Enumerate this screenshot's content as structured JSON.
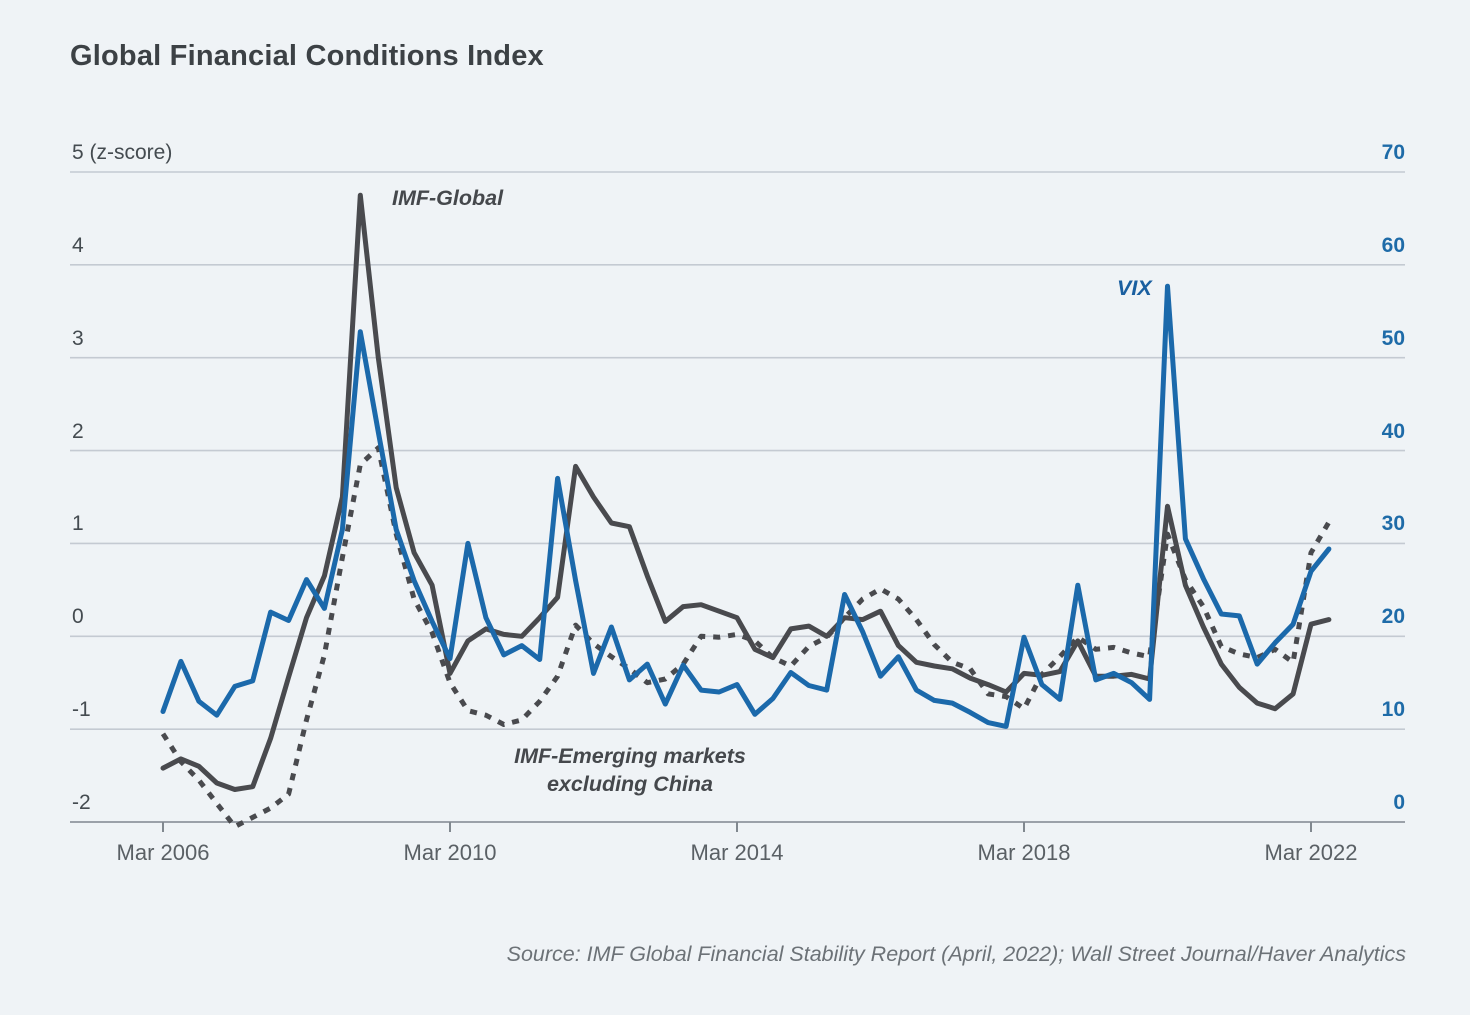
{
  "title": "Global Financial Conditions Index",
  "source": "Source: IMF Global Financial Stability Report (April, 2022); Wall Street Journal/Haver Analytics",
  "annotations": {
    "imf_global": "IMF-Global",
    "vix": "VIX",
    "em_line1": "IMF-Emerging markets",
    "em_line2": "excluding China"
  },
  "colors": {
    "background": "#eff3f6",
    "grid": "#c4cad2",
    "axis_line": "#9ba1a9",
    "tick_mark": "#81888f",
    "imf_lines": "#494a4e",
    "vix_line": "#1b69ab",
    "left_tick_text": "#444b50",
    "right_tick_text": "#1e6ba8",
    "x_tick_text": "#5a6065",
    "title_text": "#3c4145",
    "source_text": "#6c7277"
  },
  "axes": {
    "left": {
      "ticks": [
        {
          "value": 5,
          "label": "5 (z-score)"
        },
        {
          "value": 4,
          "label": "4"
        },
        {
          "value": 3,
          "label": "3"
        },
        {
          "value": 2,
          "label": "2"
        },
        {
          "value": 1,
          "label": "1"
        },
        {
          "value": 0,
          "label": "0"
        },
        {
          "value": -1,
          "label": "-1"
        },
        {
          "value": -2,
          "label": "-2"
        }
      ]
    },
    "right": {
      "ticks": [
        {
          "value": 70,
          "label": "70"
        },
        {
          "value": 60,
          "label": "60"
        },
        {
          "value": 50,
          "label": "50"
        },
        {
          "value": 40,
          "label": "40"
        },
        {
          "value": 30,
          "label": "30"
        },
        {
          "value": 20,
          "label": "20"
        },
        {
          "value": 10,
          "label": "10"
        },
        {
          "value": 0,
          "label": "0"
        }
      ]
    },
    "x": {
      "ticks": [
        {
          "label": "Mar 2006",
          "quarter_index": 0
        },
        {
          "label": "Mar 2010",
          "quarter_index": 16
        },
        {
          "label": "Mar 2014",
          "quarter_index": 32
        },
        {
          "label": "Mar 2018",
          "quarter_index": 48
        },
        {
          "label": "Mar 2022",
          "quarter_index": 64
        }
      ]
    }
  },
  "chart_data": {
    "type": "line",
    "title": "Global Financial Conditions Index",
    "grid": "horizontal",
    "legend_position": "inline-annotations",
    "left_axis": {
      "label": "(z-score)",
      "range": [
        -2,
        5
      ],
      "ticks": [
        5,
        4,
        3,
        2,
        1,
        0,
        -1,
        -2
      ]
    },
    "right_axis": {
      "label": "VIX",
      "range": [
        0,
        70
      ],
      "ticks": [
        70,
        60,
        50,
        40,
        30,
        20,
        10,
        0
      ]
    },
    "x_tick_labels": [
      "Mar 2006",
      "Mar 2010",
      "Mar 2014",
      "Mar 2018",
      "Mar 2022"
    ],
    "x_labels": [
      "Mar 2006",
      "Jun 2006",
      "Sep 2006",
      "Dec 2006",
      "Mar 2007",
      "Jun 2007",
      "Sep 2007",
      "Dec 2007",
      "Mar 2008",
      "Jun 2008",
      "Sep 2008",
      "Dec 2008",
      "Mar 2009",
      "Jun 2009",
      "Sep 2009",
      "Dec 2009",
      "Mar 2010",
      "Jun 2010",
      "Sep 2010",
      "Dec 2010",
      "Mar 2011",
      "Jun 2011",
      "Sep 2011",
      "Dec 2011",
      "Mar 2012",
      "Jun 2012",
      "Sep 2012",
      "Dec 2012",
      "Mar 2013",
      "Jun 2013",
      "Sep 2013",
      "Dec 2013",
      "Mar 2014",
      "Jun 2014",
      "Sep 2014",
      "Dec 2014",
      "Mar 2015",
      "Jun 2015",
      "Sep 2015",
      "Dec 2015",
      "Mar 2016",
      "Jun 2016",
      "Sep 2016",
      "Dec 2016",
      "Mar 2017",
      "Jun 2017",
      "Sep 2017",
      "Dec 2017",
      "Mar 2018",
      "Jun 2018",
      "Sep 2018",
      "Dec 2018",
      "Mar 2019",
      "Jun 2019",
      "Sep 2019",
      "Dec 2019",
      "Mar 2020",
      "Jun 2020",
      "Sep 2020",
      "Dec 2020",
      "Mar 2021",
      "Jun 2021",
      "Sep 2021",
      "Dec 2021",
      "Mar 2022",
      "Jun 2022"
    ],
    "series": [
      {
        "name": "IMF-Global",
        "axis": "left",
        "style": "solid",
        "color": "#494a4e",
        "values": [
          -1.42,
          -1.32,
          -1.4,
          -1.58,
          -1.65,
          -1.62,
          -1.1,
          -0.44,
          0.2,
          0.65,
          1.5,
          4.75,
          3.0,
          1.6,
          0.9,
          0.55,
          -0.4,
          -0.05,
          0.08,
          0.02,
          0.0,
          0.2,
          0.42,
          1.83,
          1.5,
          1.22,
          1.18,
          0.65,
          0.16,
          0.32,
          0.34,
          0.27,
          0.2,
          -0.14,
          -0.23,
          0.08,
          0.11,
          0.0,
          0.2,
          0.18,
          0.27,
          -0.1,
          -0.28,
          -0.32,
          -0.35,
          -0.45,
          -0.52,
          -0.6,
          -0.4,
          -0.42,
          -0.38,
          -0.05,
          -0.43,
          -0.43,
          -0.41,
          -0.46,
          1.4,
          0.55,
          0.1,
          -0.3,
          -0.55,
          -0.72,
          -0.78,
          -0.62,
          0.13,
          0.18
        ]
      },
      {
        "name": "IMF-Emerging markets excluding China",
        "axis": "left",
        "style": "dashed",
        "color": "#494a4e",
        "values": [
          -1.05,
          -1.35,
          -1.55,
          -1.8,
          -2.05,
          -1.95,
          -1.85,
          -1.7,
          -0.9,
          -0.2,
          0.85,
          1.85,
          2.03,
          1.1,
          0.4,
          0.04,
          -0.5,
          -0.8,
          -0.85,
          -0.95,
          -0.9,
          -0.7,
          -0.43,
          0.12,
          -0.08,
          -0.22,
          -0.35,
          -0.5,
          -0.46,
          -0.3,
          0.0,
          -0.01,
          0.02,
          -0.05,
          -0.23,
          -0.32,
          -0.11,
          -0.01,
          0.2,
          0.4,
          0.51,
          0.4,
          0.18,
          -0.09,
          -0.28,
          -0.35,
          -0.62,
          -0.65,
          -0.78,
          -0.41,
          -0.22,
          -0.01,
          -0.14,
          -0.12,
          -0.18,
          -0.22,
          1.1,
          0.61,
          0.32,
          -0.11,
          -0.19,
          -0.23,
          -0.14,
          -0.28,
          0.9,
          1.23
        ]
      },
      {
        "name": "VIX",
        "axis": "right",
        "style": "solid",
        "color": "#1b69ab",
        "values": [
          11.9,
          17.3,
          13.0,
          11.5,
          14.6,
          15.2,
          22.6,
          21.7,
          26.1,
          23.0,
          31.5,
          52.8,
          42.0,
          31.5,
          26.0,
          21.6,
          17.6,
          30.0,
          22.0,
          18.0,
          19.0,
          17.5,
          37.0,
          26.0,
          16.0,
          21.0,
          15.3,
          17.0,
          12.7,
          16.9,
          14.2,
          14.0,
          14.8,
          11.6,
          13.3,
          16.1,
          14.7,
          14.2,
          24.5,
          20.5,
          15.7,
          17.8,
          14.2,
          13.1,
          12.8,
          11.8,
          10.7,
          10.3,
          19.9,
          14.8,
          13.2,
          25.5,
          15.3,
          16.0,
          15.0,
          13.2,
          57.7,
          30.5,
          26.2,
          22.4,
          22.2,
          17.0,
          19.3,
          21.3,
          27.0,
          29.4
        ]
      }
    ]
  }
}
